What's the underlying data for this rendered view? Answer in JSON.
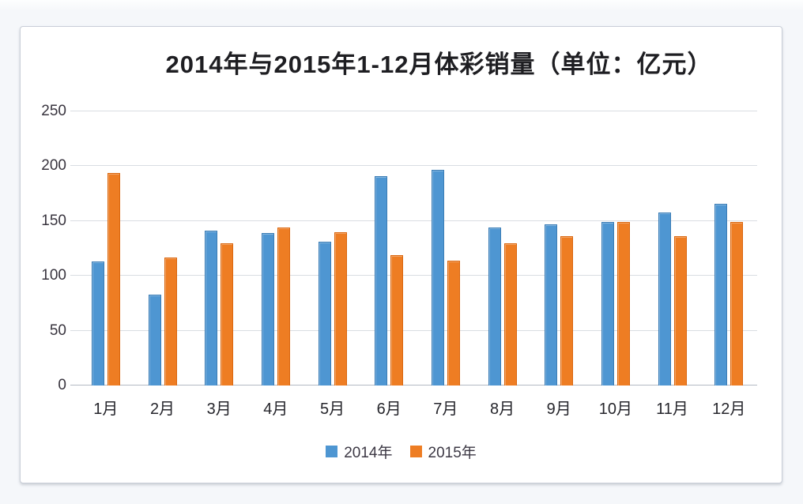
{
  "chart_data": {
    "type": "bar",
    "title": "2014年与2015年1-12月体彩销量（单位：亿元）",
    "categories": [
      "1月",
      "2月",
      "3月",
      "4月",
      "5月",
      "6月",
      "7月",
      "8月",
      "9月",
      "10月",
      "11月",
      "12月"
    ],
    "series": [
      {
        "name": "2014年",
        "color": "#4e96d2",
        "values": [
          113,
          83,
          141,
          139,
          131,
          191,
          197,
          144,
          147,
          149,
          158,
          166
        ]
      },
      {
        "name": "2015年",
        "color": "#ee7d23",
        "values": [
          194,
          117,
          130,
          144,
          140,
          119,
          114,
          130,
          136,
          149,
          136,
          149
        ]
      }
    ],
    "xlabel": "",
    "ylabel": "",
    "ylim": [
      0,
      250
    ],
    "yticks": [
      0,
      50,
      100,
      150,
      200,
      250
    ],
    "grid": true,
    "legend_position": "bottom"
  },
  "colors": {
    "series_2014": "#4e96d2",
    "series_2015": "#ee7d23",
    "page_background": "#f5f7fa",
    "chart_background": "#ffffff",
    "frame_border": "#c9ced8",
    "gridline": "#d9dde2",
    "title_text": "#1e1e22"
  }
}
